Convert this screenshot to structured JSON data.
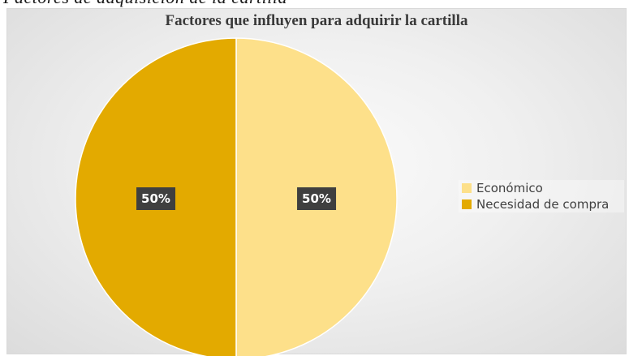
{
  "page": {
    "cut_off_heading": "Factores de adquisición de la cartilla"
  },
  "chart_data": {
    "type": "pie",
    "title": "Factores que influyen para adquirir la cartilla",
    "legend_position": "right",
    "slices": [
      {
        "label": "Económico",
        "value": 50,
        "display": "50%",
        "color": "#fde08a"
      },
      {
        "label": "Necesidad de compra",
        "value": 50,
        "display": "50%",
        "color": "#e3aa00"
      }
    ]
  }
}
